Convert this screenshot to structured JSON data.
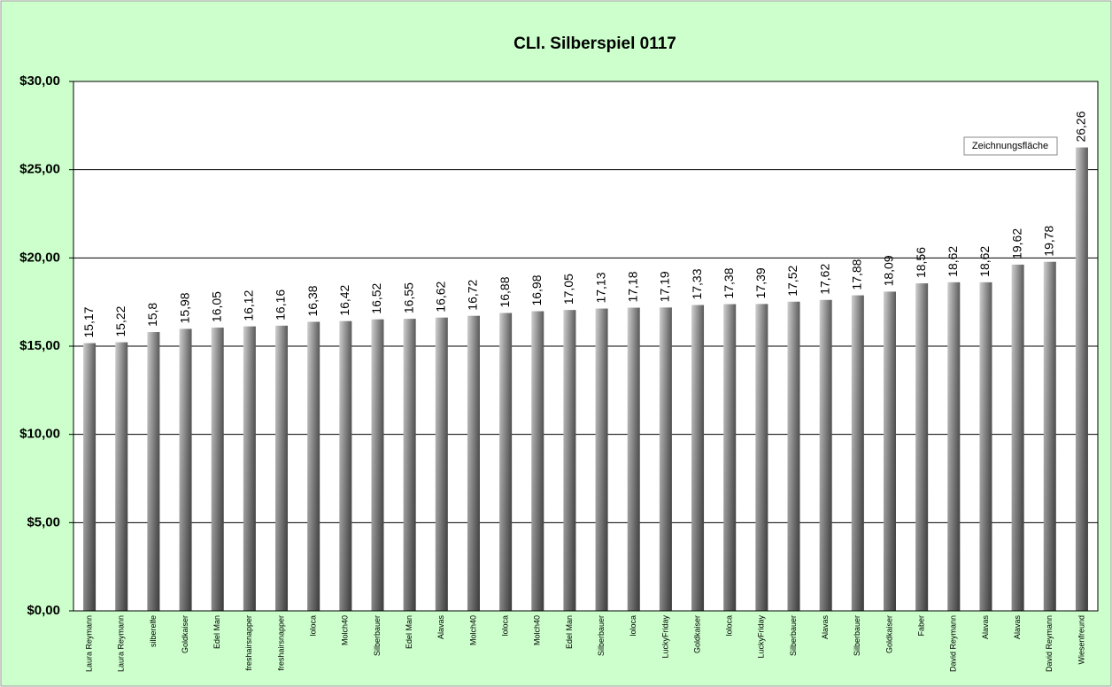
{
  "chart_data": {
    "type": "bar",
    "title": "CLI. Silberspiel 0117",
    "categories": [
      "Laura Reymann",
      "Laura Reymann",
      "silberelfe",
      "Goldkaiser",
      "Edel Man",
      "freshairsnapper",
      "freshairsnapper",
      "loloca",
      "Molch40",
      "Silberbauer",
      "Edel Man",
      "Alavas",
      "Molch40",
      "loloca",
      "Molch40",
      "Edel Man",
      "Silberbauer",
      "loloca",
      "LuckyFriday",
      "Goldkaiser",
      "loloca",
      "LuckyFriday",
      "Silberbauer",
      "Alavas",
      "Silberbauer",
      "Goldkaiser",
      "Faber",
      "David Reymann",
      "Alavas",
      "Alavas",
      "David Reymann",
      "Wiesenfreund"
    ],
    "values": [
      15.17,
      15.22,
      15.8,
      15.98,
      16.05,
      16.12,
      16.16,
      16.38,
      16.42,
      16.52,
      16.55,
      16.62,
      16.72,
      16.88,
      16.98,
      17.05,
      17.13,
      17.18,
      17.19,
      17.33,
      17.38,
      17.39,
      17.52,
      17.62,
      17.88,
      18.09,
      18.56,
      18.62,
      18.62,
      19.62,
      19.78,
      26.26
    ],
    "value_labels": [
      "15,17",
      "15,22",
      "15,8",
      "15,98",
      "16,05",
      "16,12",
      "16,16",
      "16,38",
      "16,42",
      "16,52",
      "16,55",
      "16,62",
      "16,72",
      "16,88",
      "16,98",
      "17,05",
      "17,13",
      "17,18",
      "17,19",
      "17,33",
      "17,38",
      "17,39",
      "17,52",
      "17,62",
      "17,88",
      "18,09",
      "18,56",
      "18,62",
      "18,62",
      "19,62",
      "19,78",
      "26,26"
    ],
    "color": "#8c8c8c",
    "ylim": [
      0,
      30
    ],
    "yticks": [
      {
        "value": 0,
        "label": "$0,00"
      },
      {
        "value": 5,
        "label": "$5,00"
      },
      {
        "value": 10,
        "label": "$10,00"
      },
      {
        "value": 15,
        "label": "$15,00"
      },
      {
        "value": 20,
        "label": "$20,00"
      },
      {
        "value": 25,
        "label": "$25,00"
      },
      {
        "value": 30,
        "label": "$30,00"
      }
    ],
    "grid": true
  },
  "tooltip": "Zeichnungsfläche"
}
